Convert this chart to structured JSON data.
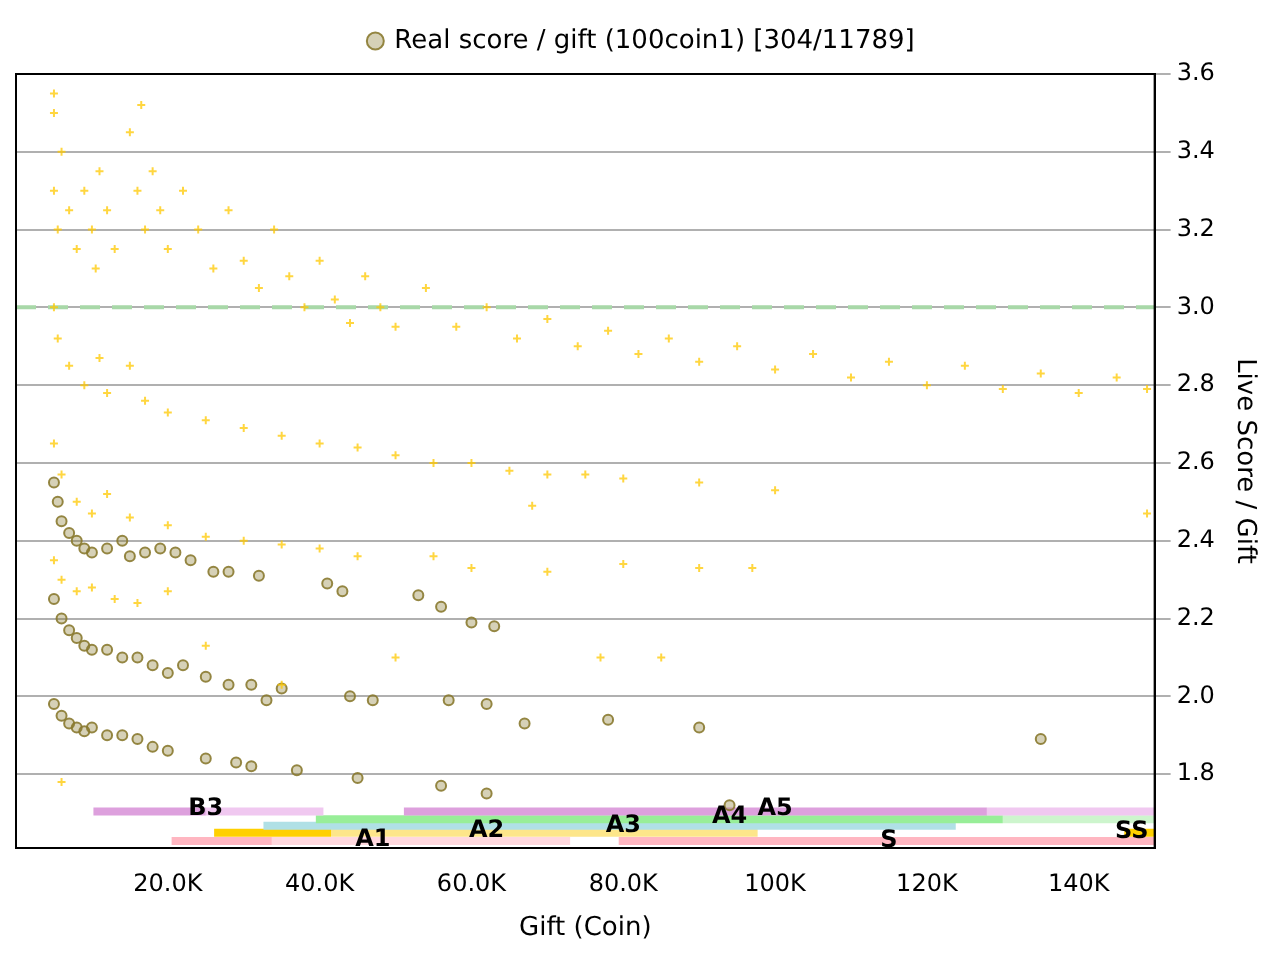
{
  "chart_data": {
    "type": "scatter",
    "xlabel": "Gift (Coin)",
    "ylabel": "Live Score / Gift",
    "xlim": [
      0,
      150000
    ],
    "xticks": [
      {
        "value": 20000,
        "label": "20.0K"
      },
      {
        "value": 40000,
        "label": "40.0K"
      },
      {
        "value": 60000,
        "label": "60.0K"
      },
      {
        "value": 80000,
        "label": "80.0K"
      },
      {
        "value": 100000,
        "label": "100K"
      },
      {
        "value": 120000,
        "label": "120K"
      },
      {
        "value": 140000,
        "label": "140K"
      }
    ],
    "ylim": [
      1.61,
      3.6
    ],
    "yticks": [
      1.8,
      {
        "value": 2.0,
        "label": "2.0"
      },
      2.2,
      2.4,
      2.6,
      2.8,
      {
        "value": 3.0,
        "label": "3.0"
      },
      3.2,
      3.4,
      3.6
    ],
    "grid": "y",
    "legend": "top",
    "ref_lines": [
      {
        "axis": "y",
        "value": 3.0,
        "color": "#a8d8a8",
        "line_style": "dashed"
      }
    ],
    "annotations": [
      {
        "text": "B3",
        "x": 25000,
        "y": 1.712
      },
      {
        "text": "A1",
        "x": 47000,
        "y": 1.632
      },
      {
        "text": "A2",
        "x": 62000,
        "y": 1.655
      },
      {
        "text": "A3",
        "x": 80000,
        "y": 1.668
      },
      {
        "text": "A4",
        "x": 94000,
        "y": 1.69
      },
      {
        "text": "A5",
        "x": 100000,
        "y": 1.71
      },
      {
        "text": "S",
        "x": 115000,
        "y": 1.628
      },
      {
        "text": "SS",
        "x": 147000,
        "y": 1.652
      }
    ],
    "series": [
      {
        "type": "scatter",
        "marker": "cross",
        "color": "#ffc800",
        "x": [
          5000,
          5000,
          5500,
          6000,
          7000,
          8000,
          9000,
          10000,
          10500,
          11000,
          12000,
          13000,
          15000,
          16000,
          17000,
          18000,
          19000,
          20000,
          22000,
          24000,
          26000,
          28000,
          30000,
          32000,
          34000,
          36000,
          38000,
          40000,
          42000,
          44000,
          46000,
          48000,
          50000,
          54000,
          58000,
          62000,
          66000,
          70000,
          74000,
          78000,
          82000,
          86000,
          90000,
          95000,
          100000,
          105000,
          110000,
          115000,
          120000,
          125000,
          130000,
          135000,
          140000,
          145000,
          149000,
          16500,
          5000,
          5000,
          5500,
          7000,
          9000,
          11000,
          12000,
          15000,
          17000,
          20000,
          25000,
          30000,
          35000,
          40000,
          45000,
          50000,
          55000,
          60000,
          65000,
          70000,
          75000,
          80000,
          90000,
          100000,
          149000,
          5000,
          6000,
          8000,
          10000,
          12000,
          15000,
          20000,
          25000,
          30000,
          35000,
          40000,
          45000,
          55000,
          60000,
          70000,
          80000,
          90000,
          97000,
          68000,
          5000,
          6000,
          8000,
          10000,
          13000,
          16000,
          20000,
          25000,
          35000,
          50000,
          77000,
          85000,
          6000
        ],
        "values": [
          3.5,
          3.3,
          3.2,
          3.4,
          3.25,
          3.15,
          3.3,
          3.2,
          3.1,
          3.35,
          3.25,
          3.15,
          3.45,
          3.3,
          3.2,
          3.35,
          3.25,
          3.15,
          3.3,
          3.2,
          3.1,
          3.25,
          3.12,
          3.05,
          3.2,
          3.08,
          3.0,
          3.12,
          3.02,
          2.96,
          3.08,
          3.0,
          2.95,
          3.05,
          2.95,
          3.0,
          2.92,
          2.97,
          2.9,
          2.94,
          2.88,
          2.92,
          2.86,
          2.9,
          2.84,
          2.88,
          2.82,
          2.86,
          2.8,
          2.85,
          2.79,
          2.83,
          2.78,
          2.82,
          2.79,
          3.52,
          3.55,
          3.0,
          2.92,
          2.85,
          2.8,
          2.87,
          2.78,
          2.85,
          2.76,
          2.73,
          2.71,
          2.69,
          2.67,
          2.65,
          2.64,
          2.62,
          2.6,
          2.6,
          2.58,
          2.57,
          2.57,
          2.56,
          2.55,
          2.53,
          2.47,
          2.65,
          2.57,
          2.5,
          2.47,
          2.52,
          2.46,
          2.44,
          2.41,
          2.4,
          2.39,
          2.38,
          2.36,
          2.36,
          2.33,
          2.32,
          2.34,
          2.33,
          2.33,
          2.49,
          2.35,
          2.3,
          2.27,
          2.28,
          2.25,
          2.24,
          2.27,
          2.13,
          2.03,
          2.1,
          2.1,
          2.1,
          1.78
        ]
      },
      {
        "type": "scatter",
        "marker": "circle",
        "name": "Real score / gift (100coin1) [304/11789]",
        "color": "#8a7a30",
        "x": [
          5000,
          5500,
          6000,
          7000,
          8000,
          9000,
          10000,
          12000,
          14000,
          15000,
          17000,
          19000,
          21000,
          23000,
          26000,
          28000,
          32000,
          41000,
          43000,
          53000,
          56000,
          60000,
          63000,
          5000,
          6000,
          7000,
          8000,
          9000,
          10000,
          12000,
          14000,
          16000,
          18000,
          20000,
          22000,
          25000,
          28000,
          31000,
          33000,
          35000,
          44000,
          47000,
          57000,
          62000,
          67000,
          78000,
          90000,
          5000,
          6000,
          7000,
          8000,
          9000,
          10000,
          12000,
          14000,
          16000,
          18000,
          20000,
          25000,
          29000,
          31000,
          37000,
          45000,
          56000,
          62000,
          94000,
          135000
        ],
        "values": [
          2.55,
          2.5,
          2.45,
          2.42,
          2.4,
          2.38,
          2.37,
          2.38,
          2.4,
          2.36,
          2.37,
          2.38,
          2.37,
          2.35,
          2.32,
          2.32,
          2.31,
          2.29,
          2.27,
          2.26,
          2.23,
          2.19,
          2.18,
          2.25,
          2.2,
          2.17,
          2.15,
          2.13,
          2.12,
          2.12,
          2.1,
          2.1,
          2.08,
          2.06,
          2.08,
          2.05,
          2.03,
          2.03,
          1.99,
          2.02,
          2.0,
          1.99,
          1.99,
          1.98,
          1.93,
          1.94,
          1.92,
          1.98,
          1.95,
          1.93,
          1.92,
          1.91,
          1.92,
          1.9,
          1.9,
          1.89,
          1.87,
          1.86,
          1.84,
          1.83,
          1.82,
          1.81,
          1.79,
          1.77,
          1.75,
          1.72,
          1.89
        ]
      },
      {
        "type": "line",
        "color": "#dda0dd",
        "x": [
          10200,
          25000
        ],
        "values": [
          1.704,
          1.704
        ]
      },
      {
        "type": "line",
        "color": "#f0c8f0",
        "x": [
          25000,
          40500
        ],
        "values": [
          1.704,
          1.704
        ]
      },
      {
        "type": "line",
        "color": "#dda0dd",
        "x": [
          51100,
          127900
        ],
        "values": [
          1.704,
          1.704
        ]
      },
      {
        "type": "line",
        "color": "#f0c8f0",
        "x": [
          127900,
          150000
        ],
        "values": [
          1.704,
          1.704
        ]
      },
      {
        "type": "line",
        "color": "#98ee98",
        "x": [
          39500,
          130000
        ],
        "values": [
          1.684,
          1.684
        ]
      },
      {
        "type": "line",
        "color": "#cdf5cd",
        "x": [
          130000,
          150000
        ],
        "values": [
          1.684,
          1.684
        ]
      },
      {
        "type": "line",
        "color": "#b0e0e6",
        "x": [
          32600,
          123800
        ],
        "values": [
          1.667,
          1.667
        ]
      },
      {
        "type": "line",
        "color": "#ffd000",
        "x": [
          26100,
          41500
        ],
        "values": [
          1.649,
          1.649
        ]
      },
      {
        "type": "line",
        "color": "#fde68a",
        "x": [
          41500,
          97700
        ],
        "values": [
          1.649,
          1.649
        ]
      },
      {
        "type": "line",
        "color": "#ffd000",
        "x": [
          146000,
          150000
        ],
        "values": [
          1.649,
          1.649
        ]
      },
      {
        "type": "line",
        "color": "#ffb6c1",
        "x": [
          20500,
          33700
        ],
        "values": [
          1.628,
          1.628
        ]
      },
      {
        "type": "line",
        "color": "#ffd8de",
        "x": [
          33700,
          73000
        ],
        "values": [
          1.628,
          1.628
        ]
      },
      {
        "type": "line",
        "color": "#ffb6c1",
        "x": [
          79400,
          150000
        ],
        "values": [
          1.628,
          1.628
        ]
      }
    ]
  }
}
